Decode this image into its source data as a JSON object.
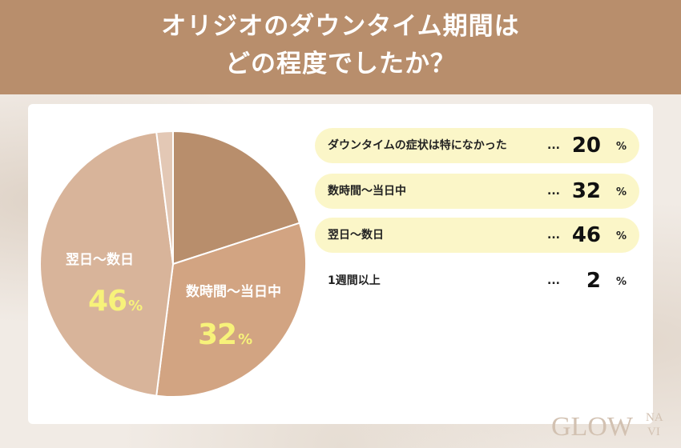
{
  "title": {
    "line1": "オリジオのダウンタイム期間は",
    "line2": "どの程度でしたか？"
  },
  "colors": {
    "header": "#b88e6c",
    "slice_none": "#b88e6c",
    "slice_hours": "#d2a482",
    "slice_nextday": "#d8b49a",
    "slice_week": "#e3c8b5",
    "highlight": "#fbf6c8",
    "value_yellow": "#f7f27a"
  },
  "chart_data": {
    "type": "pie",
    "categories": [
      "ダウンタイムの症状は特になかった",
      "数時間〜当日中",
      "翌日〜数日",
      "1週間以上"
    ],
    "values": [
      20,
      32,
      46,
      2
    ],
    "unit": "%"
  },
  "pie_labels": [
    {
      "name": "翌日〜数日",
      "value": "46",
      "unit": "%"
    },
    {
      "name": "数時間〜当日中",
      "value": "32",
      "unit": "%"
    }
  ],
  "legend": [
    {
      "label": "ダウンタイムの症状は特になかった",
      "dots": "...",
      "value": "20",
      "unit": "%",
      "highlight": true
    },
    {
      "label": "数時間〜当日中",
      "dots": "...",
      "value": "32",
      "unit": "%",
      "highlight": true
    },
    {
      "label": "翌日〜数日",
      "dots": "...",
      "value": "46",
      "unit": "%",
      "highlight": true
    },
    {
      "label": "1週間以上",
      "dots": "...",
      "value": "2",
      "unit": "%",
      "highlight": false
    }
  ],
  "logo": {
    "text_main": "GLOW",
    "text_sub_top": "NA",
    "text_sub_bottom": "VI"
  }
}
